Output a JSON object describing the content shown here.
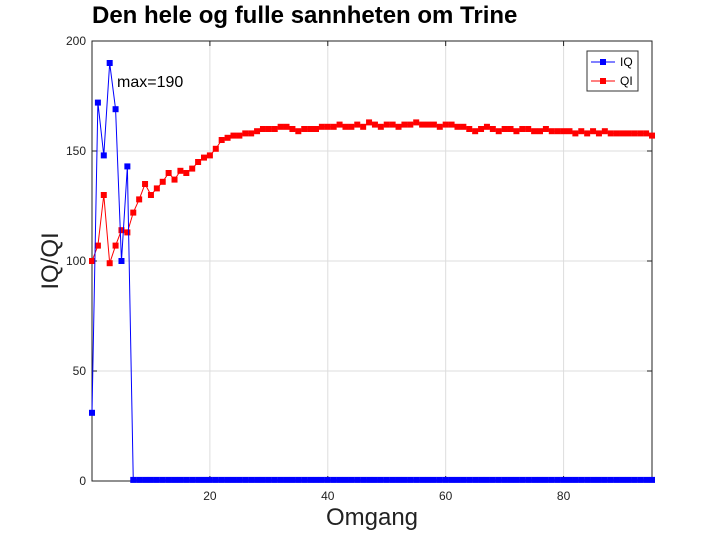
{
  "chart_data": {
    "type": "line",
    "title": "Den hele og fulle sannheten om Trine",
    "xlabel": "Omgang",
    "ylabel": "IQ/QI",
    "xlim": [
      0,
      95
    ],
    "ylim": [
      0,
      200
    ],
    "xticks": [
      20,
      40,
      60,
      80
    ],
    "yticks": [
      0,
      50,
      100,
      150,
      200
    ],
    "grid": true,
    "legend_position": "top-right",
    "annotation": "max=190",
    "series": [
      {
        "name": "IQ",
        "color": "#0000ff",
        "marker": "square",
        "x": [
          0,
          1,
          2,
          3,
          4,
          5,
          6,
          7,
          8,
          9,
          10,
          11,
          12,
          13,
          14,
          15,
          16,
          17,
          18,
          19,
          20,
          21,
          22,
          23,
          24,
          25,
          26,
          27,
          28,
          29,
          30,
          31,
          32,
          33,
          34,
          35,
          36,
          37,
          38,
          39,
          40,
          41,
          42,
          43,
          44,
          45,
          46,
          47,
          48,
          49,
          50,
          51,
          52,
          53,
          54,
          55,
          56,
          57,
          58,
          59,
          60,
          61,
          62,
          63,
          64,
          65,
          66,
          67,
          68,
          69,
          70,
          71,
          72,
          73,
          74,
          75,
          76,
          77,
          78,
          79,
          80,
          81,
          82,
          83,
          84,
          85,
          86,
          87,
          88,
          89,
          90,
          91,
          92,
          93,
          94,
          95
        ],
        "values": [
          31,
          172,
          148,
          190,
          169,
          100,
          143,
          0.5,
          0.5,
          0.5,
          0.5,
          0.5,
          0.5,
          0.5,
          0.5,
          0.5,
          0.5,
          0.5,
          0.5,
          0.5,
          0.5,
          0.5,
          0.5,
          0.5,
          0.5,
          0.5,
          0.5,
          0.5,
          0.5,
          0.5,
          0.5,
          0.5,
          0.5,
          0.5,
          0.5,
          0.5,
          0.5,
          0.5,
          0.5,
          0.5,
          0.5,
          0.5,
          0.5,
          0.5,
          0.5,
          0.5,
          0.5,
          0.5,
          0.5,
          0.5,
          0.5,
          0.5,
          0.5,
          0.5,
          0.5,
          0.5,
          0.5,
          0.5,
          0.5,
          0.5,
          0.5,
          0.5,
          0.5,
          0.5,
          0.5,
          0.5,
          0.5,
          0.5,
          0.5,
          0.5,
          0.5,
          0.5,
          0.5,
          0.5,
          0.5,
          0.5,
          0.5,
          0.5,
          0.5,
          0.5,
          0.5,
          0.5,
          0.5,
          0.5,
          0.5,
          0.5,
          0.5,
          0.5,
          0.5,
          0.5,
          0.5,
          0.5,
          0.5,
          0.5,
          0.5,
          0.5
        ]
      },
      {
        "name": "QI",
        "color": "#ff0000",
        "marker": "square",
        "x": [
          0,
          1,
          2,
          3,
          4,
          5,
          6,
          7,
          8,
          9,
          10,
          11,
          12,
          13,
          14,
          15,
          16,
          17,
          18,
          19,
          20,
          21,
          22,
          23,
          24,
          25,
          26,
          27,
          28,
          29,
          30,
          31,
          32,
          33,
          34,
          35,
          36,
          37,
          38,
          39,
          40,
          41,
          42,
          43,
          44,
          45,
          46,
          47,
          48,
          49,
          50,
          51,
          52,
          53,
          54,
          55,
          56,
          57,
          58,
          59,
          60,
          61,
          62,
          63,
          64,
          65,
          66,
          67,
          68,
          69,
          70,
          71,
          72,
          73,
          74,
          75,
          76,
          77,
          78,
          79,
          80,
          81,
          82,
          83,
          84,
          85,
          86,
          87,
          88,
          89,
          90,
          91,
          92,
          93,
          94,
          95
        ],
        "values": [
          100,
          107,
          130,
          99,
          107,
          114,
          113,
          122,
          128,
          135,
          130,
          133,
          136,
          140,
          137,
          141,
          140,
          142,
          145,
          147,
          148,
          151,
          155,
          156,
          157,
          157,
          158,
          158,
          159,
          160,
          160,
          160,
          161,
          161,
          160,
          159,
          160,
          160,
          160,
          161,
          161,
          161,
          162,
          161,
          161,
          162,
          161,
          163,
          162,
          161,
          162,
          162,
          161,
          162,
          162,
          163,
          162,
          162,
          162,
          161,
          162,
          162,
          161,
          161,
          160,
          159,
          160,
          161,
          160,
          159,
          160,
          160,
          159,
          160,
          160,
          159,
          159,
          160,
          159,
          159,
          159,
          159,
          158,
          159,
          158,
          159,
          158,
          159,
          158,
          158,
          158,
          158,
          158,
          158,
          158,
          157
        ]
      }
    ]
  }
}
